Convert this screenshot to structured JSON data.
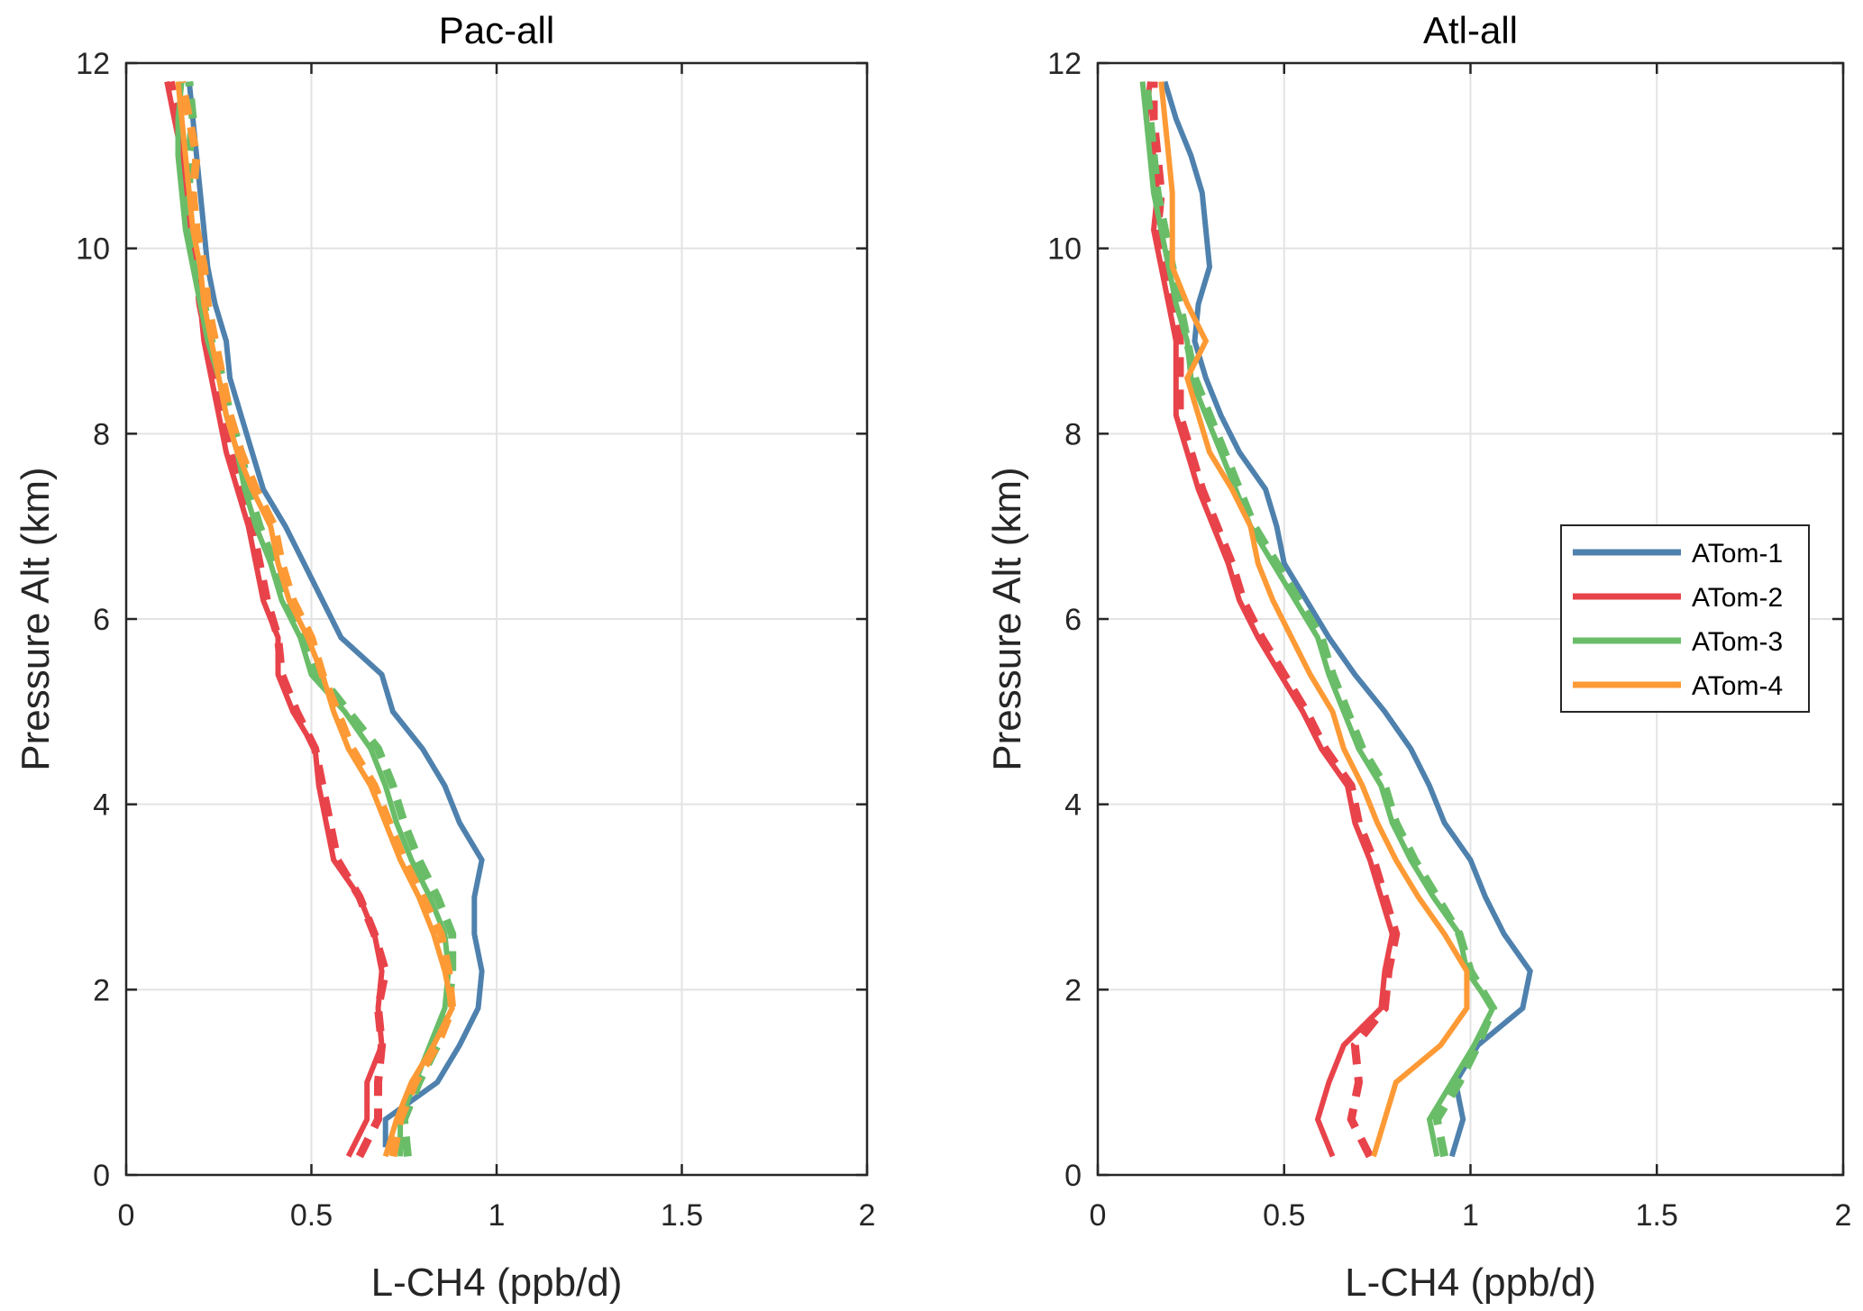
{
  "chart_data": [
    {
      "type": "line",
      "title": "Pac-all",
      "xlabel": "L-CH4 (ppb/d)",
      "ylabel": "Pressure Alt (km)",
      "xlim": [
        0,
        2
      ],
      "ylim": [
        0,
        12
      ],
      "xticks": [
        0,
        0.5,
        1,
        1.5,
        2
      ],
      "xtick_labels": [
        "0",
        "0.5",
        "1",
        "1.5",
        "2"
      ],
      "yticks": [
        0,
        2,
        4,
        6,
        8,
        10,
        12
      ],
      "ytick_labels": [
        "0",
        "2",
        "4",
        "6",
        "8",
        "10",
        "12"
      ],
      "grid": true,
      "legend": null,
      "series": [
        {
          "name": "ATom-1",
          "style": "solid",
          "color": "#4e81ad",
          "x": [
            0.7,
            0.7,
            0.84,
            0.9,
            0.95,
            0.96,
            0.94,
            0.94,
            0.96,
            0.9,
            0.86,
            0.8,
            0.72,
            0.69,
            0.58,
            0.53,
            0.48,
            0.43,
            0.37,
            0.34,
            0.31,
            0.28,
            0.27,
            0.24,
            0.22,
            0.21,
            0.2,
            0.19,
            0.18,
            0.17
          ],
          "y": [
            0.3,
            0.6,
            1.0,
            1.4,
            1.8,
            2.2,
            2.6,
            3.0,
            3.4,
            3.8,
            4.2,
            4.6,
            5.0,
            5.4,
            5.8,
            6.2,
            6.6,
            7.0,
            7.4,
            7.8,
            8.2,
            8.6,
            9.0,
            9.4,
            9.8,
            10.2,
            10.6,
            11.0,
            11.4,
            11.8
          ]
        },
        {
          "name": "ATom-2",
          "style": "solid",
          "color": "#e8434a",
          "x": [
            0.6,
            0.65,
            0.65,
            0.69,
            0.68,
            0.69,
            0.67,
            0.63,
            0.56,
            0.54,
            0.52,
            0.51,
            0.45,
            0.41,
            0.41,
            0.37,
            0.35,
            0.33,
            0.3,
            0.27,
            0.25,
            0.23,
            0.21,
            0.2,
            0.19,
            0.17,
            0.16,
            0.15,
            0.13,
            0.11
          ],
          "y": [
            0.2,
            0.6,
            1.0,
            1.4,
            1.8,
            2.2,
            2.6,
            3.0,
            3.4,
            3.8,
            4.2,
            4.6,
            5.0,
            5.4,
            5.8,
            6.2,
            6.6,
            7.0,
            7.4,
            7.8,
            8.2,
            8.6,
            9.0,
            9.4,
            9.8,
            10.2,
            10.6,
            11.0,
            11.4,
            11.8
          ]
        },
        {
          "name": "ATom-2 (dashed)",
          "style": "dashed",
          "color": "#e8434a",
          "x": [
            0.63,
            0.68,
            0.68,
            0.69,
            0.68,
            0.7,
            0.67,
            0.63,
            0.57,
            0.55,
            0.53,
            0.51,
            0.46,
            0.42,
            0.41,
            0.38,
            0.36,
            0.34,
            0.31,
            0.28,
            0.26,
            0.24,
            0.22,
            0.2,
            0.19,
            0.17,
            0.16,
            0.15,
            0.14,
            0.12
          ],
          "y": [
            0.2,
            0.6,
            1.0,
            1.4,
            1.8,
            2.2,
            2.6,
            3.0,
            3.4,
            3.8,
            4.2,
            4.6,
            5.0,
            5.4,
            5.8,
            6.2,
            6.6,
            7.0,
            7.4,
            7.8,
            8.2,
            8.6,
            9.0,
            9.4,
            9.8,
            10.2,
            10.6,
            11.0,
            11.4,
            11.8
          ]
        },
        {
          "name": "ATom-3",
          "style": "solid",
          "color": "#6abd68",
          "x": [
            0.74,
            0.74,
            0.78,
            0.82,
            0.86,
            0.87,
            0.86,
            0.82,
            0.77,
            0.73,
            0.7,
            0.66,
            0.59,
            0.5,
            0.47,
            0.42,
            0.39,
            0.35,
            0.32,
            0.3,
            0.27,
            0.25,
            0.22,
            0.2,
            0.18,
            0.16,
            0.15,
            0.14,
            0.14,
            0.15
          ],
          "y": [
            0.2,
            0.6,
            1.0,
            1.4,
            1.8,
            2.2,
            2.6,
            3.0,
            3.4,
            3.8,
            4.2,
            4.6,
            5.0,
            5.4,
            5.8,
            6.2,
            6.6,
            7.0,
            7.4,
            7.8,
            8.2,
            8.6,
            9.0,
            9.4,
            9.8,
            10.2,
            10.6,
            11.0,
            11.4,
            11.8
          ]
        },
        {
          "name": "ATom-3 (dashed)",
          "style": "dashed",
          "color": "#6abd68",
          "x": [
            0.76,
            0.75,
            0.79,
            0.84,
            0.87,
            0.88,
            0.88,
            0.84,
            0.79,
            0.75,
            0.72,
            0.68,
            0.6,
            0.52,
            0.48,
            0.43,
            0.4,
            0.36,
            0.33,
            0.31,
            0.28,
            0.26,
            0.23,
            0.21,
            0.19,
            0.17,
            0.17,
            0.17,
            0.18,
            0.17
          ],
          "y": [
            0.2,
            0.6,
            1.0,
            1.4,
            1.8,
            2.2,
            2.6,
            3.0,
            3.4,
            3.8,
            4.2,
            4.6,
            5.0,
            5.4,
            5.8,
            6.2,
            6.6,
            7.0,
            7.4,
            7.8,
            8.2,
            8.6,
            9.0,
            9.4,
            9.8,
            10.2,
            10.6,
            11.0,
            11.4,
            11.8
          ]
        },
        {
          "name": "ATom-4",
          "style": "solid",
          "color": "#fd9a35",
          "x": [
            0.7,
            0.73,
            0.77,
            0.83,
            0.88,
            0.86,
            0.83,
            0.79,
            0.74,
            0.7,
            0.66,
            0.6,
            0.56,
            0.53,
            0.49,
            0.44,
            0.41,
            0.39,
            0.34,
            0.3,
            0.27,
            0.25,
            0.23,
            0.21,
            0.2,
            0.18,
            0.17,
            0.16,
            0.15,
            0.14
          ],
          "y": [
            0.2,
            0.6,
            1.0,
            1.4,
            1.8,
            2.2,
            2.6,
            3.0,
            3.4,
            3.8,
            4.2,
            4.6,
            5.0,
            5.4,
            5.8,
            6.2,
            6.6,
            7.0,
            7.4,
            7.8,
            8.2,
            8.6,
            9.0,
            9.4,
            9.8,
            10.2,
            10.6,
            11.0,
            11.4,
            11.8
          ]
        },
        {
          "name": "ATom-4 (dashed)",
          "style": "dashed",
          "color": "#fd9a35",
          "x": [
            0.72,
            0.74,
            0.78,
            0.84,
            0.88,
            0.87,
            0.85,
            0.8,
            0.75,
            0.71,
            0.67,
            0.61,
            0.57,
            0.53,
            0.5,
            0.45,
            0.42,
            0.4,
            0.35,
            0.31,
            0.28,
            0.26,
            0.24,
            0.22,
            0.21,
            0.19,
            0.18,
            0.19,
            0.17,
            0.15
          ],
          "y": [
            0.2,
            0.6,
            1.0,
            1.4,
            1.8,
            2.2,
            2.6,
            3.0,
            3.4,
            3.8,
            4.2,
            4.6,
            5.0,
            5.4,
            5.8,
            6.2,
            6.6,
            7.0,
            7.4,
            7.8,
            8.2,
            8.6,
            9.0,
            9.4,
            9.8,
            10.2,
            10.6,
            11.0,
            11.4,
            11.8
          ]
        }
      ]
    },
    {
      "type": "line",
      "title": "Atl-all",
      "xlabel": "L-CH4 (ppb/d)",
      "ylabel": "Pressure Alt (km)",
      "xlim": [
        0,
        2
      ],
      "ylim": [
        0,
        12
      ],
      "xticks": [
        0,
        0.5,
        1,
        1.5,
        2
      ],
      "xtick_labels": [
        "0",
        "0.5",
        "1",
        "1.5",
        "2"
      ],
      "yticks": [
        0,
        2,
        4,
        6,
        8,
        10,
        12
      ],
      "ytick_labels": [
        "0",
        "2",
        "4",
        "6",
        "8",
        "10",
        "12"
      ],
      "grid": true,
      "legend": {
        "position": "right",
        "entries": [
          "ATom-1",
          "ATom-2",
          "ATom-3",
          "ATom-4"
        ]
      },
      "series": [
        {
          "name": "ATom-1",
          "style": "solid",
          "color": "#4e81ad",
          "x": [
            0.95,
            0.98,
            0.96,
            1.02,
            1.14,
            1.16,
            1.09,
            1.04,
            1.0,
            0.93,
            0.89,
            0.84,
            0.77,
            0.69,
            0.62,
            0.56,
            0.5,
            0.48,
            0.45,
            0.38,
            0.33,
            0.29,
            0.26,
            0.27,
            0.3,
            0.29,
            0.28,
            0.25,
            0.21,
            0.18
          ],
          "y": [
            0.2,
            0.6,
            1.0,
            1.4,
            1.8,
            2.2,
            2.6,
            3.0,
            3.4,
            3.8,
            4.2,
            4.6,
            5.0,
            5.4,
            5.8,
            6.2,
            6.6,
            7.0,
            7.4,
            7.8,
            8.2,
            8.6,
            9.0,
            9.4,
            9.8,
            10.2,
            10.6,
            11.0,
            11.4,
            11.8
          ]
        },
        {
          "name": "ATom-2",
          "style": "solid",
          "color": "#e8434a",
          "x": [
            0.63,
            0.59,
            0.62,
            0.66,
            0.76,
            0.77,
            0.79,
            0.76,
            0.73,
            0.69,
            0.67,
            0.6,
            0.55,
            0.49,
            0.43,
            0.38,
            0.35,
            0.31,
            0.27,
            0.24,
            0.21,
            0.21,
            0.21,
            0.19,
            0.17,
            0.15,
            0.16,
            0.15,
            0.13,
            0.14
          ],
          "y": [
            0.2,
            0.6,
            1.0,
            1.4,
            1.8,
            2.2,
            2.6,
            3.0,
            3.4,
            3.8,
            4.2,
            4.6,
            5.0,
            5.4,
            5.8,
            6.2,
            6.6,
            7.0,
            7.4,
            7.8,
            8.2,
            8.6,
            9.0,
            9.4,
            9.8,
            10.2,
            10.6,
            11.0,
            11.4,
            11.8
          ]
        },
        {
          "name": "ATom-2 (dashed)",
          "style": "dashed",
          "color": "#e8434a",
          "x": [
            0.73,
            0.68,
            0.7,
            0.69,
            0.77,
            0.78,
            0.8,
            0.77,
            0.74,
            0.7,
            0.68,
            0.61,
            0.56,
            0.5,
            0.44,
            0.39,
            0.36,
            0.32,
            0.28,
            0.25,
            0.22,
            0.22,
            0.22,
            0.2,
            0.18,
            0.16,
            0.17,
            0.16,
            0.15,
            0.15
          ],
          "y": [
            0.2,
            0.6,
            1.0,
            1.4,
            1.8,
            2.2,
            2.6,
            3.0,
            3.4,
            3.8,
            4.2,
            4.6,
            5.0,
            5.4,
            5.8,
            6.2,
            6.6,
            7.0,
            7.4,
            7.8,
            8.2,
            8.6,
            9.0,
            9.4,
            9.8,
            10.2,
            10.6,
            11.0,
            11.4,
            11.8
          ]
        },
        {
          "name": "ATom-3",
          "style": "solid",
          "color": "#6abd68",
          "x": [
            0.91,
            0.89,
            0.95,
            1.01,
            1.06,
            0.99,
            0.97,
            0.9,
            0.84,
            0.79,
            0.76,
            0.7,
            0.66,
            0.62,
            0.59,
            0.53,
            0.47,
            0.41,
            0.37,
            0.33,
            0.29,
            0.25,
            0.24,
            0.21,
            0.19,
            0.17,
            0.15,
            0.14,
            0.13,
            0.12
          ],
          "y": [
            0.2,
            0.6,
            1.0,
            1.4,
            1.8,
            2.2,
            2.6,
            3.0,
            3.4,
            3.8,
            4.2,
            4.6,
            5.0,
            5.4,
            5.8,
            6.2,
            6.6,
            7.0,
            7.4,
            7.8,
            8.2,
            8.6,
            9.0,
            9.4,
            9.8,
            10.2,
            10.6,
            11.0,
            11.4,
            11.8
          ]
        },
        {
          "name": "ATom-3 (dashed)",
          "style": "dashed",
          "color": "#6abd68",
          "x": [
            0.93,
            0.91,
            0.97,
            1.02,
            1.06,
            1.0,
            0.97,
            0.91,
            0.85,
            0.8,
            0.77,
            0.71,
            0.67,
            0.63,
            0.6,
            0.54,
            0.48,
            0.42,
            0.38,
            0.34,
            0.3,
            0.26,
            0.24,
            0.22,
            0.2,
            0.18,
            0.16,
            0.15,
            0.14,
            0.13
          ],
          "y": [
            0.2,
            0.6,
            1.0,
            1.4,
            1.8,
            2.2,
            2.6,
            3.0,
            3.4,
            3.8,
            4.2,
            4.6,
            5.0,
            5.4,
            5.8,
            6.2,
            6.6,
            7.0,
            7.4,
            7.8,
            8.2,
            8.6,
            9.0,
            9.4,
            9.8,
            10.2,
            10.6,
            11.0,
            11.4,
            11.8
          ]
        },
        {
          "name": "ATom-4",
          "style": "solid",
          "color": "#fd9a35",
          "x": [
            0.74,
            0.77,
            0.8,
            0.92,
            0.99,
            0.99,
            0.93,
            0.86,
            0.8,
            0.75,
            0.71,
            0.66,
            0.63,
            0.57,
            0.52,
            0.47,
            0.43,
            0.41,
            0.36,
            0.3,
            0.27,
            0.24,
            0.29,
            0.24,
            0.2,
            0.2,
            0.2,
            0.19,
            0.18,
            0.17
          ],
          "y": [
            0.2,
            0.6,
            1.0,
            1.4,
            1.8,
            2.2,
            2.6,
            3.0,
            3.4,
            3.8,
            4.2,
            4.6,
            5.0,
            5.4,
            5.8,
            6.2,
            6.6,
            7.0,
            7.4,
            7.8,
            8.2,
            8.6,
            9.0,
            9.4,
            9.8,
            10.2,
            10.6,
            11.0,
            11.4,
            11.8
          ]
        }
      ]
    }
  ]
}
